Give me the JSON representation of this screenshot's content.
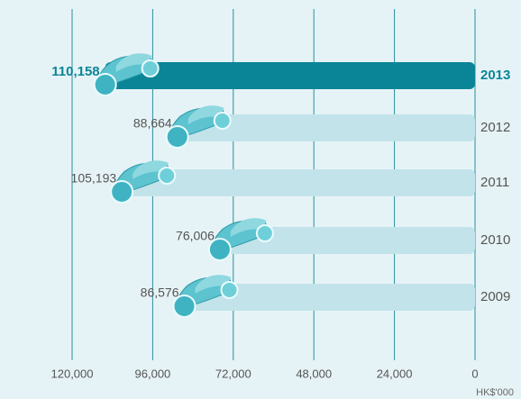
{
  "chart_data": {
    "type": "bar",
    "orientation": "horizontal",
    "categories": [
      "2013",
      "2012",
      "2011",
      "2010",
      "2009"
    ],
    "values": [
      110158,
      88664,
      105193,
      76006,
      86576
    ],
    "value_labels": [
      "110,158",
      "88,664",
      "105,193",
      "76,006",
      "86,576"
    ],
    "colors": [
      "#0a8597",
      "#c2e3ea",
      "#c2e3ea",
      "#c2e3ea",
      "#c2e3ea"
    ],
    "highlight_index": 0,
    "xlim": [
      120000,
      0
    ],
    "xticks": [
      {
        "value": 120000,
        "label": "120,000"
      },
      {
        "value": 96000,
        "label": "96,000"
      },
      {
        "value": 72000,
        "label": "72,000"
      },
      {
        "value": 48000,
        "label": "48,000"
      },
      {
        "value": 24000,
        "label": "24,000"
      },
      0
    ],
    "x_unit": "HK$'000",
    "grid": true
  }
}
